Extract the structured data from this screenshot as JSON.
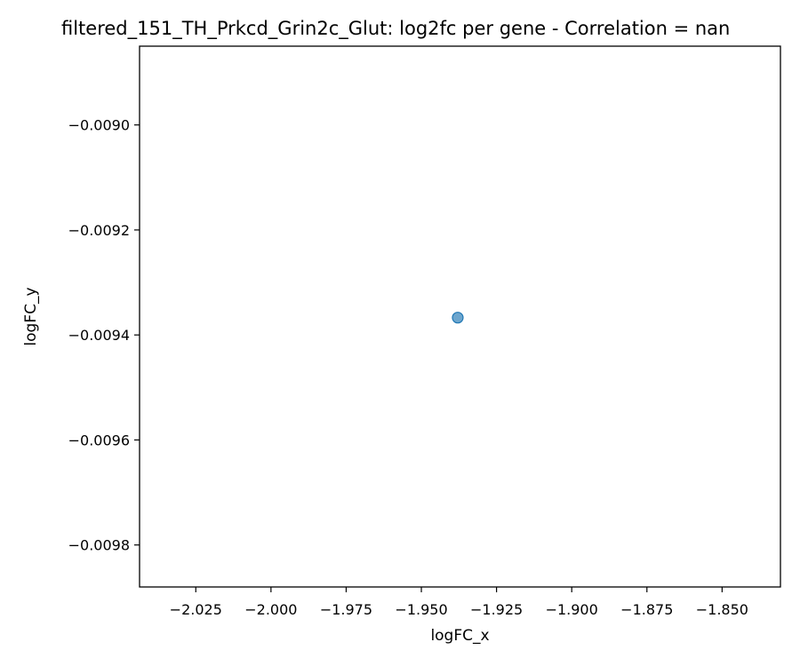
{
  "chart_data": {
    "type": "scatter",
    "title": "filtered_151_TH_Prkcd_Grin2c_Glut: log2fc per gene - Correlation = nan",
    "xlabel": "logFC_x",
    "ylabel": "logFC_y",
    "xlim": [
      -2.0437,
      -1.8306
    ],
    "ylim": [
      -0.00988,
      -0.00885
    ],
    "x_ticks": [
      -2.025,
      -2.0,
      -1.975,
      -1.95,
      -1.925,
      -1.9,
      -1.875,
      -1.85
    ],
    "x_tick_labels": [
      "−2.025",
      "−2.000",
      "−1.975",
      "−1.950",
      "−1.925",
      "−1.900",
      "−1.875",
      "−1.850"
    ],
    "y_ticks": [
      -0.009,
      -0.0092,
      -0.0094,
      -0.0096,
      -0.0098
    ],
    "y_tick_labels": [
      "−0.0090",
      "−0.0092",
      "−0.0094",
      "−0.0096",
      "−0.0098"
    ],
    "grid": false,
    "series": [
      {
        "color": "#1f77b4",
        "points": [
          {
            "x": -1.9379,
            "y": -0.009367
          }
        ]
      }
    ]
  }
}
